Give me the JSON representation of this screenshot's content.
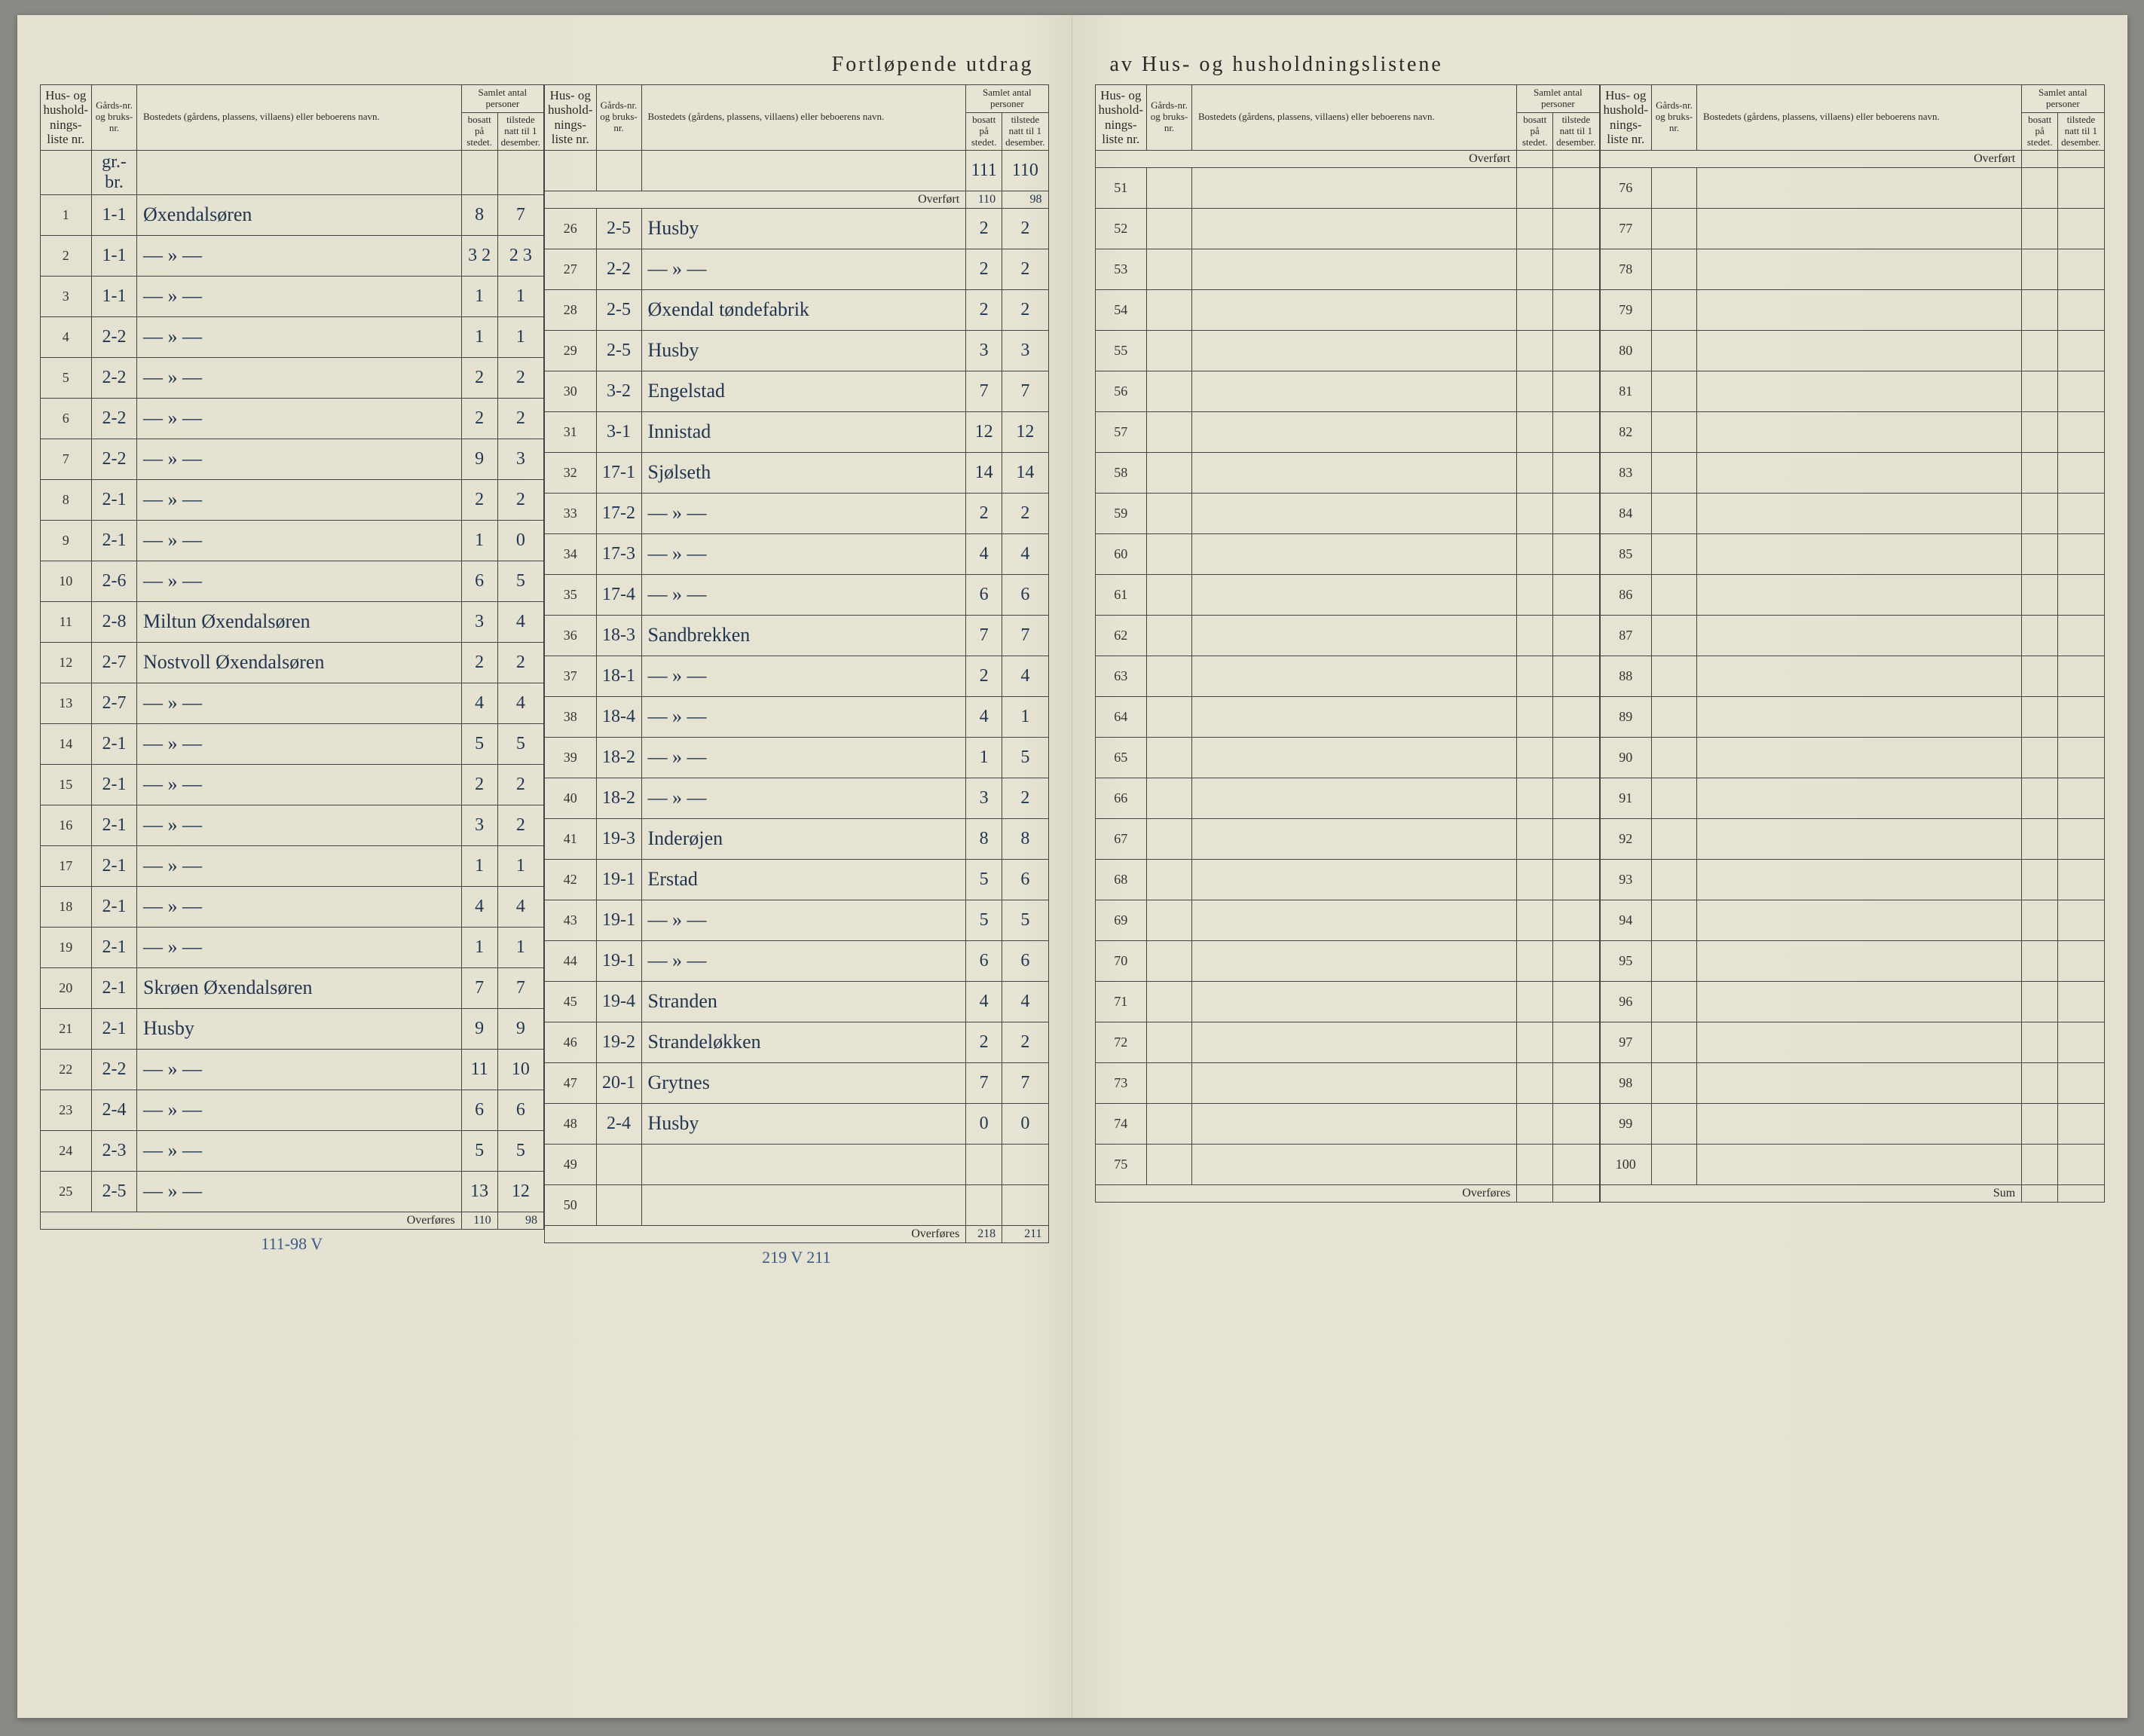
{
  "title_left": "Fortløpende utdrag",
  "title_right": "av Hus- og husholdningslistene",
  "headers": {
    "col1": "Hus- og hushold-nings-liste nr.",
    "col2": "Gårds-nr. og bruks-nr.",
    "col3": "Bostedets (gårdens, plassens, villaens) eller beboerens navn.",
    "group": "Samlet antal personer",
    "col4": "bosatt på stedet.",
    "col5": "tilstede natt til 1 desember."
  },
  "overfort_label": "Overført",
  "overfores_label": "Overføres",
  "sum_label": "Sum",
  "carry_top": {
    "a": "111",
    "b": "110"
  },
  "block1": [
    {
      "n": "1",
      "g": "1-1",
      "name": "Øxendalsøren",
      "b": "8",
      "t": "7"
    },
    {
      "n": "2",
      "g": "1-1",
      "name": "— » —",
      "b": "3 2",
      "t": "2 3"
    },
    {
      "n": "3",
      "g": "1-1",
      "name": "— » —",
      "b": "1",
      "t": "1"
    },
    {
      "n": "4",
      "g": "2-2",
      "name": "— » —",
      "b": "1",
      "t": "1"
    },
    {
      "n": "5",
      "g": "2-2",
      "name": "— » —",
      "b": "2",
      "t": "2"
    },
    {
      "n": "6",
      "g": "2-2",
      "name": "— » —",
      "b": "2",
      "t": "2"
    },
    {
      "n": "7",
      "g": "2-2",
      "name": "— » —",
      "b": "9",
      "t": "3"
    },
    {
      "n": "8",
      "g": "2-1",
      "name": "— » —",
      "b": "2",
      "t": "2"
    },
    {
      "n": "9",
      "g": "2-1",
      "name": "— » —",
      "b": "1",
      "t": "0"
    },
    {
      "n": "10",
      "g": "2-6",
      "name": "— » —",
      "b": "6",
      "t": "5"
    },
    {
      "n": "11",
      "g": "2-8",
      "name": "Miltun Øxendalsøren",
      "b": "3",
      "t": "4"
    },
    {
      "n": "12",
      "g": "2-7",
      "name": "Nostvoll Øxendalsøren",
      "b": "2",
      "t": "2"
    },
    {
      "n": "13",
      "g": "2-7",
      "name": "— » —",
      "b": "4",
      "t": "4"
    },
    {
      "n": "14",
      "g": "2-1",
      "name": "— » —",
      "b": "5",
      "t": "5"
    },
    {
      "n": "15",
      "g": "2-1",
      "name": "— » —",
      "b": "2",
      "t": "2"
    },
    {
      "n": "16",
      "g": "2-1",
      "name": "— » —",
      "b": "3",
      "t": "2"
    },
    {
      "n": "17",
      "g": "2-1",
      "name": "— » —",
      "b": "1",
      "t": "1"
    },
    {
      "n": "18",
      "g": "2-1",
      "name": "— » —",
      "b": "4",
      "t": "4"
    },
    {
      "n": "19",
      "g": "2-1",
      "name": "— » —",
      "b": "1",
      "t": "1"
    },
    {
      "n": "20",
      "g": "2-1",
      "name": "Skrøen Øxendalsøren",
      "b": "7",
      "t": "7"
    },
    {
      "n": "21",
      "g": "2-1",
      "name": "Husby",
      "b": "9",
      "t": "9"
    },
    {
      "n": "22",
      "g": "2-2",
      "name": "— » —",
      "b": "11",
      "t": "10"
    },
    {
      "n": "23",
      "g": "2-4",
      "name": "— » —",
      "b": "6",
      "t": "6"
    },
    {
      "n": "24",
      "g": "2-3",
      "name": "— » —",
      "b": "5",
      "t": "5"
    },
    {
      "n": "25",
      "g": "2-5",
      "name": "— » —",
      "b": "13",
      "t": "12"
    }
  ],
  "block1_sum": {
    "b": "110",
    "t": "98"
  },
  "block1_note": "111-98 V",
  "block2_overfort": {
    "b": "110",
    "t": "98"
  },
  "block2": [
    {
      "n": "26",
      "g": "2-5",
      "name": "Husby",
      "b": "2",
      "t": "2"
    },
    {
      "n": "27",
      "g": "2-2",
      "name": "— » —",
      "b": "2",
      "t": "2"
    },
    {
      "n": "28",
      "g": "2-5",
      "name": "Øxendal tøndefabrik",
      "b": "2",
      "t": "2"
    },
    {
      "n": "29",
      "g": "2-5",
      "name": "Husby",
      "b": "3",
      "t": "3"
    },
    {
      "n": "30",
      "g": "3-2",
      "name": "Engelstad",
      "b": "7",
      "t": "7"
    },
    {
      "n": "31",
      "g": "3-1",
      "name": "Innistad",
      "b": "12",
      "t": "12"
    },
    {
      "n": "32",
      "g": "17-1",
      "name": "Sjølseth",
      "b": "14",
      "t": "14"
    },
    {
      "n": "33",
      "g": "17-2",
      "name": "— » —",
      "b": "2",
      "t": "2"
    },
    {
      "n": "34",
      "g": "17-3",
      "name": "— » —",
      "b": "4",
      "t": "4"
    },
    {
      "n": "35",
      "g": "17-4",
      "name": "— » —",
      "b": "6",
      "t": "6"
    },
    {
      "n": "36",
      "g": "18-3",
      "name": "Sandbrekken",
      "b": "7",
      "t": "7"
    },
    {
      "n": "37",
      "g": "18-1",
      "name": "— » —",
      "b": "2",
      "t": "4"
    },
    {
      "n": "38",
      "g": "18-4",
      "name": "— » —",
      "b": "4",
      "t": "1"
    },
    {
      "n": "39",
      "g": "18-2",
      "name": "— » —",
      "b": "1",
      "t": "5"
    },
    {
      "n": "40",
      "g": "18-2",
      "name": "— » —",
      "b": "3",
      "t": "2"
    },
    {
      "n": "41",
      "g": "19-3",
      "name": "Inderøjen",
      "b": "8",
      "t": "8"
    },
    {
      "n": "42",
      "g": "19-1",
      "name": "Erstad",
      "b": "5",
      "t": "6"
    },
    {
      "n": "43",
      "g": "19-1",
      "name": "— » —",
      "b": "5",
      "t": "5"
    },
    {
      "n": "44",
      "g": "19-1",
      "name": "— » —",
      "b": "6",
      "t": "6"
    },
    {
      "n": "45",
      "g": "19-4",
      "name": "Stranden",
      "b": "4",
      "t": "4"
    },
    {
      "n": "46",
      "g": "19-2",
      "name": "Strandeløkken",
      "b": "2",
      "t": "2"
    },
    {
      "n": "47",
      "g": "20-1",
      "name": "Grytnes",
      "b": "7",
      "t": "7"
    },
    {
      "n": "48",
      "g": "2-4",
      "name": "Husby",
      "b": "0",
      "t": "0"
    },
    {
      "n": "49",
      "g": "",
      "name": "",
      "b": "",
      "t": ""
    },
    {
      "n": "50",
      "g": "",
      "name": "",
      "b": "",
      "t": ""
    }
  ],
  "block2_sum": {
    "b": "218",
    "t": "211"
  },
  "block2_note": "219 V 211",
  "block3": [
    {
      "n": "51"
    },
    {
      "n": "52"
    },
    {
      "n": "53"
    },
    {
      "n": "54"
    },
    {
      "n": "55"
    },
    {
      "n": "56"
    },
    {
      "n": "57"
    },
    {
      "n": "58"
    },
    {
      "n": "59"
    },
    {
      "n": "60"
    },
    {
      "n": "61"
    },
    {
      "n": "62"
    },
    {
      "n": "63"
    },
    {
      "n": "64"
    },
    {
      "n": "65"
    },
    {
      "n": "66"
    },
    {
      "n": "67"
    },
    {
      "n": "68"
    },
    {
      "n": "69"
    },
    {
      "n": "70"
    },
    {
      "n": "71"
    },
    {
      "n": "72"
    },
    {
      "n": "73"
    },
    {
      "n": "74"
    },
    {
      "n": "75"
    }
  ],
  "block4": [
    {
      "n": "76"
    },
    {
      "n": "77"
    },
    {
      "n": "78"
    },
    {
      "n": "79"
    },
    {
      "n": "80"
    },
    {
      "n": "81"
    },
    {
      "n": "82"
    },
    {
      "n": "83"
    },
    {
      "n": "84"
    },
    {
      "n": "85"
    },
    {
      "n": "86"
    },
    {
      "n": "87"
    },
    {
      "n": "88"
    },
    {
      "n": "89"
    },
    {
      "n": "90"
    },
    {
      "n": "91"
    },
    {
      "n": "92"
    },
    {
      "n": "93"
    },
    {
      "n": "94"
    },
    {
      "n": "95"
    },
    {
      "n": "96"
    },
    {
      "n": "97"
    },
    {
      "n": "98"
    },
    {
      "n": "99"
    },
    {
      "n": "100"
    }
  ],
  "gr_note": "gr.-br."
}
